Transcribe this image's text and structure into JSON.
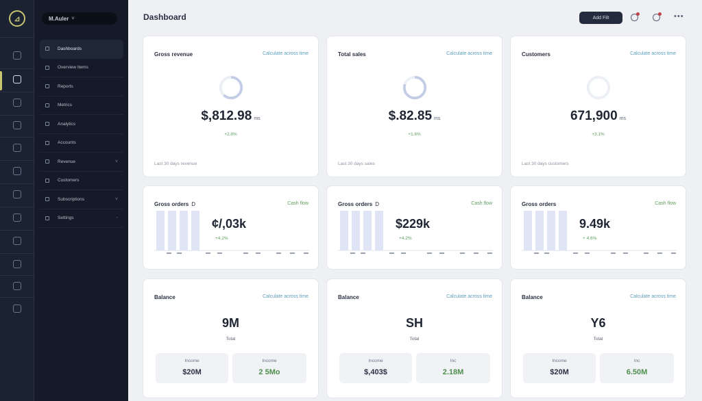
{
  "rail": {
    "logo_glyph": "⊿",
    "icons": [
      "home-icon",
      "folder-icon",
      "chart-icon",
      "grid-icon",
      "calendar-icon",
      "user-icon",
      "list-icon",
      "settings-icon",
      "archive-icon",
      "bell-icon",
      "help-icon",
      "layers-icon"
    ]
  },
  "sidebar": {
    "workspace": "M.Auler",
    "workspace_chevron": "˅",
    "items": [
      {
        "label": "Dashboards",
        "active": true,
        "chevron": ""
      },
      {
        "label": "Overview Items",
        "active": false,
        "chevron": ""
      },
      {
        "label": "Reports",
        "active": false,
        "chevron": ""
      },
      {
        "label": "Metrics",
        "active": false,
        "chevron": ""
      },
      {
        "label": "Analytics",
        "active": false,
        "chevron": ""
      },
      {
        "label": "Accounts",
        "active": false,
        "chevron": ""
      },
      {
        "label": "Revenue",
        "active": false,
        "chevron": "˅"
      },
      {
        "label": "Customers",
        "active": false,
        "chevron": ""
      },
      {
        "label": "Subscriptions",
        "active": false,
        "chevron": "˅"
      },
      {
        "label": "Settings",
        "active": false,
        "chevron": "-"
      }
    ]
  },
  "header": {
    "title": "Dashboard",
    "button_label": "Add Filt",
    "more": "•••"
  },
  "colors": {
    "accent": "#c9c470",
    "donut": "#c4cde6",
    "bar": "#dfe5f4",
    "positive": "#5e9c5e",
    "link": "#5a9cb8"
  },
  "cards": {
    "row1": [
      {
        "title": "Gross revenue",
        "link": "Calculate across time",
        "value": "$,812.98",
        "unit": "ms",
        "sub": "+2.8%",
        "footer": "Last 30 days revenue",
        "donut_fill": 0.62
      },
      {
        "title": "Total sales",
        "link": "Calculate across time",
        "value": "$.82.85",
        "unit": "ms",
        "sub": "+1.6%",
        "footer": "Last 30 days sales",
        "donut_fill": 0.8
      },
      {
        "title": "Customers",
        "link": "Calculate across time",
        "value": "671,900",
        "unit": "ms",
        "sub": "+3.1%",
        "footer": "Last 30 days customers",
        "donut_fill": 0.0
      }
    ],
    "row2": [
      {
        "title": "Gross orders",
        "title_suffix": "D",
        "link": "Cash flow",
        "value": "¢/,03k",
        "sub": "+4.2%",
        "bars": [
          1,
          1,
          1,
          1
        ]
      },
      {
        "title": "Gross orders",
        "title_suffix": "D",
        "link": "Cash flow",
        "value": "$229k",
        "sub": "+4.2%",
        "bars": [
          1,
          1,
          1,
          1
        ]
      },
      {
        "title": "Gross orders",
        "title_suffix": "",
        "link": "Cash flow",
        "value": "9.49k",
        "sub": "+ 4.6%",
        "bars": [
          1,
          1,
          1,
          1
        ]
      }
    ],
    "row3": [
      {
        "title": "Balance",
        "link": "Calculate across time",
        "value": "9M",
        "sub": "Total",
        "left_label": "Income",
        "left_value": "$20M",
        "right_label": "Income",
        "right_value": "2 5Mo"
      },
      {
        "title": "Balance",
        "link": "Calculate across time",
        "value": "SH",
        "sub": "Total",
        "left_label": "Income",
        "left_value": "$,403$",
        "right_label": "Inc",
        "right_value": "2.18M"
      },
      {
        "title": "Balance",
        "link": "Calculate across time",
        "value": "Y6",
        "sub": "Total",
        "left_label": "Income",
        "left_value": "$20M",
        "right_label": "Inc",
        "right_value": "6.50M"
      }
    ]
  }
}
